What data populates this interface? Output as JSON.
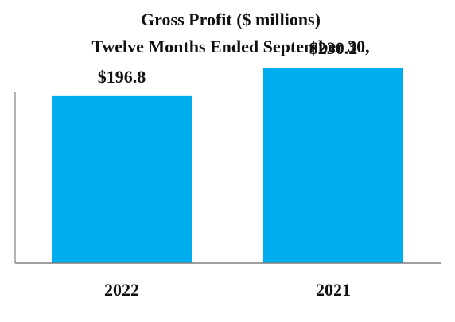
{
  "chart_data": {
    "type": "bar",
    "title_lines": [
      "Gross Profit ($ millions)",
      "Twelve Months Ended September 30,"
    ],
    "categories": [
      "2022",
      "2021"
    ],
    "values": [
      196.8,
      230.2
    ],
    "value_labels": [
      "$196.8",
      "$230.2"
    ],
    "xlabel": "",
    "ylabel": "",
    "ylim": [
      0,
      310
    ],
    "grid": false,
    "legend": "none",
    "bar_color": "#00AEEF",
    "axis_color": "#7F7F7F"
  }
}
